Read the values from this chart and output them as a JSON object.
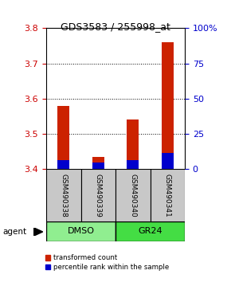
{
  "title": "GDS3583 / 255998_at",
  "samples": [
    "GSM490338",
    "GSM490339",
    "GSM490340",
    "GSM490341"
  ],
  "red_tops": [
    3.58,
    3.435,
    3.54,
    3.76
  ],
  "blue_tops": [
    3.425,
    3.418,
    3.425,
    3.445
  ],
  "bar_bottom": 3.4,
  "ylim_left": [
    3.4,
    3.8
  ],
  "ylim_right": [
    0,
    100
  ],
  "yticks_left": [
    3.4,
    3.5,
    3.6,
    3.7,
    3.8
  ],
  "yticks_right": [
    0,
    25,
    50,
    75,
    100
  ],
  "ytick_labels_right": [
    "0",
    "25",
    "50",
    "75",
    "100%"
  ],
  "left_tick_color": "#CC0000",
  "right_tick_color": "#0000CC",
  "bar_width": 0.35,
  "sample_box_color": "#C8C8C8",
  "dmso_color": "#90EE90",
  "gr24_color": "#44DD44",
  "legend_red": "transformed count",
  "legend_blue": "percentile rank within the sample",
  "grid_yticks": [
    3.5,
    3.6,
    3.7
  ]
}
